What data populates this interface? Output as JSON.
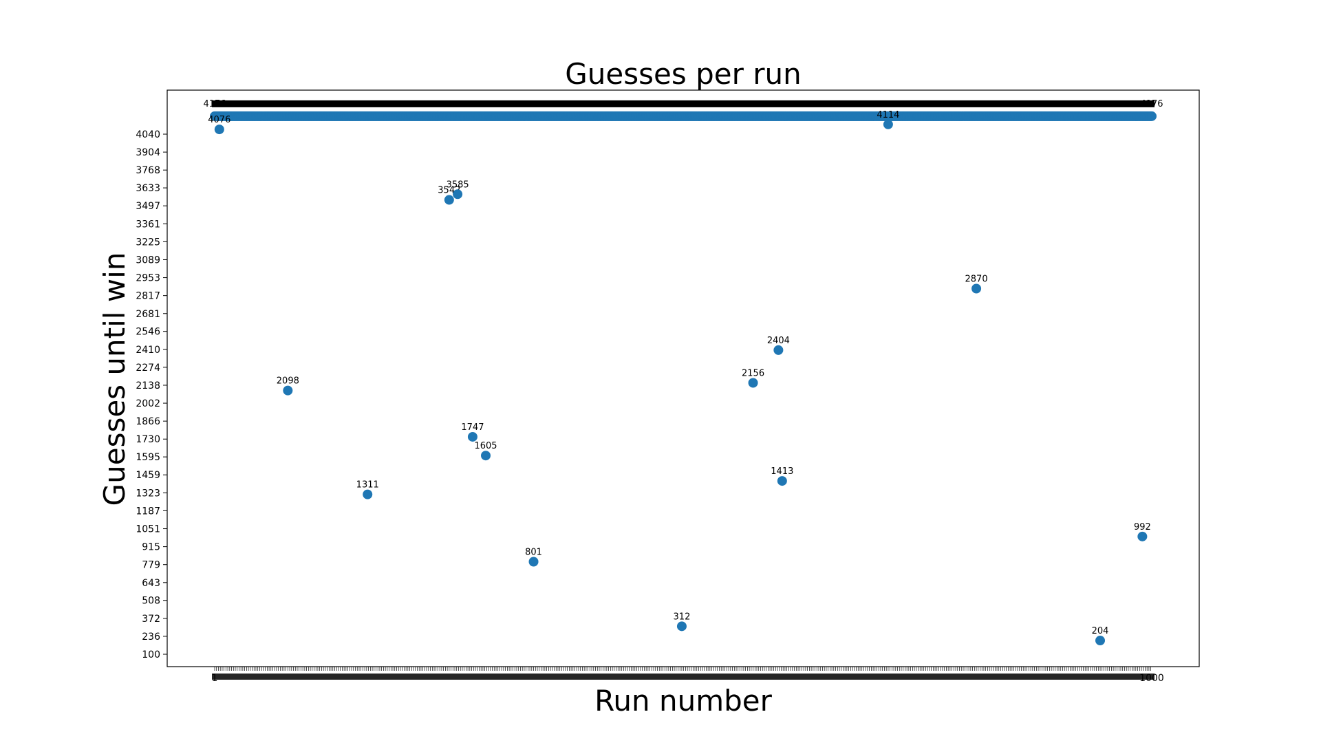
{
  "chart_data": {
    "type": "scatter",
    "title": "Guesses per run",
    "xlabel": "Run number",
    "ylabel": "Guesses until win",
    "xlim": [
      1,
      1000
    ],
    "ylim": [
      100,
      4176
    ],
    "yticks": [
      100,
      236,
      372,
      508,
      643,
      779,
      915,
      1051,
      1187,
      1323,
      1459,
      1595,
      1730,
      1866,
      2002,
      2138,
      2274,
      2410,
      2546,
      2681,
      2817,
      2953,
      3089,
      3225,
      3361,
      3497,
      3633,
      3768,
      3904,
      4040
    ],
    "xtick_label_first": "1",
    "xtick_label_last": "1000",
    "grid": false,
    "marker_color": "#1f77b4",
    "cap_value": 4176,
    "cap_label": "4176",
    "points": [
      {
        "x": 6,
        "y": 4076,
        "label": "4076"
      },
      {
        "x": 79,
        "y": 2098,
        "label": "2098"
      },
      {
        "x": 164,
        "y": 1311,
        "label": "1311"
      },
      {
        "x": 251,
        "y": 3542,
        "label": "3542"
      },
      {
        "x": 260,
        "y": 3585,
        "label": "3585"
      },
      {
        "x": 276,
        "y": 1747,
        "label": "1747"
      },
      {
        "x": 290,
        "y": 1605,
        "label": "1605"
      },
      {
        "x": 341,
        "y": 801,
        "label": "801"
      },
      {
        "x": 499,
        "y": 312,
        "label": "312"
      },
      {
        "x": 575,
        "y": 2156,
        "label": "2156"
      },
      {
        "x": 602,
        "y": 2404,
        "label": "2404"
      },
      {
        "x": 606,
        "y": 1413,
        "label": "1413"
      },
      {
        "x": 719,
        "y": 4114,
        "label": "4114"
      },
      {
        "x": 813,
        "y": 2870,
        "label": "2870"
      },
      {
        "x": 945,
        "y": 204,
        "label": "204"
      },
      {
        "x": 990,
        "y": 992,
        "label": "992"
      }
    ]
  }
}
